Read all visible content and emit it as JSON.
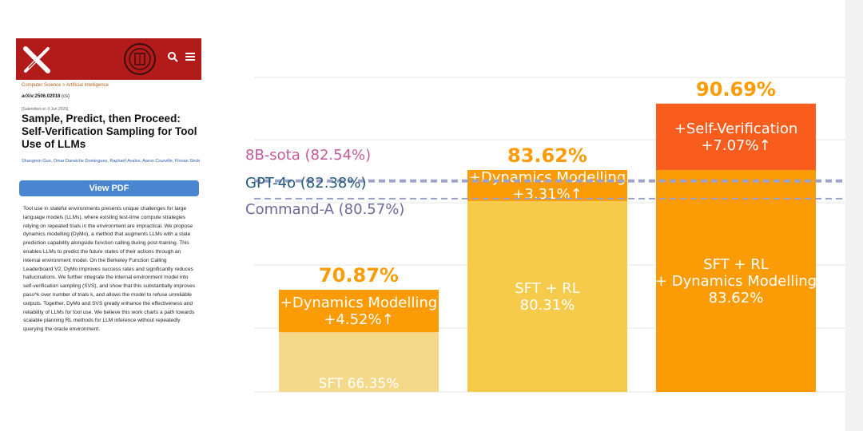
{
  "paper": {
    "breadcrumb": "Computer Science > Artificial Intelligence",
    "arxiv_id": "arXiv:2506.02918",
    "arxiv_class": "(cs)",
    "submitted": "[Submitted on 3 Jun 2025]",
    "title": "Sample, Predict, then Proceed: Self-Verification Sampling for Tool Use of LLMs",
    "authors": "Shangmin Guo, Omar Darwiche Domingues, Raphaël Avalos, Aaron Courville, Florian Strub",
    "view_pdf": "View PDF",
    "abstract": "Tool use in stateful environments presents unique challenges for large language models (LLMs), where existing test-time compute strategies relying on repeated trials in the environment are impractical. We propose dynamics modelling (DyMo), a method that augments LLMs with a state prediction capability alongside function calling during post-training. This enables LLMs to predict the future states of their actions through an internal environment model. On the Berkeley Function Calling Leaderboard V2, DyMo improves success rates and significantly reduces hallucinations. We further integrate the internal environment model into self-verification sampling (SVS), and show that this substantially improves pass^k over number of trials k, and allows the model to refuse unreliable outputs. Together, DyMo and SVS greatly enhance the effectiveness and reliability of LLMs for tool use. We believe this work charts a path towards scalable planning RL methods for LLM inference without repeatedly querying the oracle environment.",
    "icons": [
      "arxiv-x-logo",
      "university-seal-icon",
      "search-icon",
      "menu-icon"
    ],
    "colors": {
      "header": "#b31b1b",
      "button": "#4a86d0"
    }
  },
  "chart_data": {
    "type": "bar",
    "stacked": true,
    "ylim": [
      60,
      95
    ],
    "grid": true,
    "bars": [
      {
        "top_label": "70.87%",
        "segments": [
          {
            "label": "SFT 66.35%",
            "value": 66.35,
            "color": "#f5d98a",
            "text_color": "#ffffff"
          },
          {
            "label_lines": [
              "+Dynamics Modelling",
              "+4.52%↑"
            ],
            "value": 4.52,
            "color": "#fb9b06",
            "text_color": "#ffffff"
          }
        ]
      },
      {
        "top_label": "83.62%",
        "segments": [
          {
            "label_lines": [
              "SFT + RL",
              "80.31%"
            ],
            "value": 80.31,
            "color": "#f6ca4b",
            "text_color": "#ffffff"
          },
          {
            "label_lines": [
              "+Dynamics Modelling",
              "+3.31%↑"
            ],
            "value": 3.31,
            "color": "#fb9b06",
            "text_color": "#ffffff"
          }
        ]
      },
      {
        "top_label": "90.69%",
        "segments": [
          {
            "label_lines": [
              "SFT + RL",
              "+ Dynamics Modelling",
              "83.62%"
            ],
            "value": 83.62,
            "color": "#fb9b06",
            "text_color": "#ffffff"
          },
          {
            "label_lines": [
              "+Self-Verification",
              "+7.07%↑"
            ],
            "value": 7.07,
            "color": "#f95d1d",
            "text_color": "#ffffff"
          }
        ]
      }
    ],
    "reference_lines": [
      {
        "label": "8B-sota (82.54%)",
        "value": 82.54,
        "color": "#c25a9b",
        "line_color": "#9aa0c8"
      },
      {
        "label": "GPT-4o (82.38%)",
        "value": 82.38,
        "color": "#235a78",
        "line_color": "#9aa0c8"
      },
      {
        "label": "Command-A (80.57%)",
        "value": 80.57,
        "color": "#6e6a9a",
        "line_color": "#9aa0c8"
      }
    ],
    "top_label_color": "#fb9b06"
  }
}
